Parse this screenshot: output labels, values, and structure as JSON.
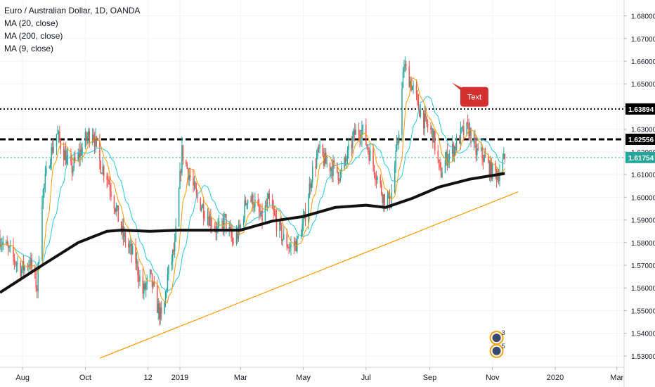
{
  "legend": {
    "title": "Euro / Australian Dollar, 1D, OANDA",
    "items": [
      "MA (20, close)",
      "MA (200, close)",
      "MA (9, close)"
    ]
  },
  "annotation": {
    "text": "Text",
    "date": "2019-10-13",
    "price": 1.6443
  },
  "badges": [
    {
      "label": "3",
      "date": "2019-11-05",
      "price": 1.538
    },
    {
      "label": "5",
      "date": "2019-11-05",
      "price": 1.5322
    }
  ],
  "colors": {
    "up": "#26a69a",
    "down": "#ef5350",
    "ma20": "#26c6da",
    "ma200": "#111111",
    "ma9": "#ff9800",
    "trendline": "#ff9800",
    "annotation": "#d32f2f",
    "current": "#26a69a"
  },
  "chart_data": {
    "type": "candlestick",
    "instrument": "EURAUD",
    "timeframe": "1D",
    "ylim": [
      1.525,
      1.687
    ],
    "xlim": [
      "2018-07-10",
      "2020-03-08"
    ],
    "y_ticks": [
      "1.68000",
      "1.67000",
      "1.66000",
      "1.65000",
      "1.64000",
      "1.63000",
      "1.62000",
      "1.61000",
      "1.60000",
      "1.59000",
      "1.58000",
      "1.57000",
      "1.56000",
      "1.55000",
      "1.54000",
      "1.53000"
    ],
    "x_ticks": [
      {
        "label": "Aug",
        "date": "2018-08-01"
      },
      {
        "label": "Oct",
        "date": "2018-10-01"
      },
      {
        "label": "12",
        "date": "2018-12-01"
      },
      {
        "label": "2019",
        "date": "2019-01-01"
      },
      {
        "label": "Mar",
        "date": "2019-03-01"
      },
      {
        "label": "May",
        "date": "2019-05-01"
      },
      {
        "label": "Jul",
        "date": "2019-07-01"
      },
      {
        "label": "Sep",
        "date": "2019-09-01"
      },
      {
        "label": "Nov",
        "date": "2019-11-01"
      },
      {
        "label": "2020",
        "date": "2020-01-01"
      },
      {
        "label": "Mar",
        "date": "2020-03-01"
      }
    ],
    "horizontal_lines": [
      {
        "price": 1.63894,
        "label": "1.63894",
        "style": "dotted",
        "color": "#000000"
      },
      {
        "price": 1.62556,
        "label": "1.62556",
        "style": "dashed",
        "color": "#000000"
      },
      {
        "price": 1.61754,
        "label": "1.61754",
        "style": "dotted",
        "color": "#26a69a"
      }
    ],
    "trendline": {
      "start": {
        "date": "2018-10-15",
        "price": 1.529
      },
      "end": {
        "date": "2019-11-26",
        "price": 1.6024
      }
    },
    "close_series": [
      [
        "2018-07-10",
        1.582
      ],
      [
        "2018-07-20",
        1.575
      ],
      [
        "2018-07-31",
        1.568
      ],
      [
        "2018-08-08",
        1.572
      ],
      [
        "2018-08-15",
        1.56
      ],
      [
        "2018-08-20",
        1.6
      ],
      [
        "2018-08-27",
        1.617
      ],
      [
        "2018-09-03",
        1.628
      ],
      [
        "2018-09-10",
        1.62
      ],
      [
        "2018-09-17",
        1.612
      ],
      [
        "2018-09-24",
        1.618
      ],
      [
        "2018-10-01",
        1.625
      ],
      [
        "2018-10-08",
        1.63
      ],
      [
        "2018-10-15",
        1.615
      ],
      [
        "2018-10-22",
        1.61
      ],
      [
        "2018-10-29",
        1.598
      ],
      [
        "2018-11-05",
        1.585
      ],
      [
        "2018-11-12",
        1.578
      ],
      [
        "2018-11-19",
        1.572
      ],
      [
        "2018-11-26",
        1.558
      ],
      [
        "2018-12-03",
        1.565
      ],
      [
        "2018-12-10",
        1.552
      ],
      [
        "2018-12-15",
        1.545
      ],
      [
        "2018-12-20",
        1.565
      ],
      [
        "2018-12-27",
        1.578
      ],
      [
        "2019-01-03",
        1.62
      ],
      [
        "2019-01-10",
        1.61
      ],
      [
        "2019-01-17",
        1.6
      ],
      [
        "2019-01-24",
        1.595
      ],
      [
        "2019-01-31",
        1.59
      ],
      [
        "2019-02-07",
        1.585
      ],
      [
        "2019-02-14",
        1.59
      ],
      [
        "2019-02-21",
        1.58
      ],
      [
        "2019-02-28",
        1.585
      ],
      [
        "2019-03-07",
        1.6
      ],
      [
        "2019-03-14",
        1.598
      ],
      [
        "2019-03-21",
        1.59
      ],
      [
        "2019-03-28",
        1.598
      ],
      [
        "2019-04-04",
        1.59
      ],
      [
        "2019-04-11",
        1.582
      ],
      [
        "2019-04-18",
        1.578
      ],
      [
        "2019-04-25",
        1.58
      ],
      [
        "2019-05-02",
        1.59
      ],
      [
        "2019-05-09",
        1.61
      ],
      [
        "2019-05-16",
        1.62
      ],
      [
        "2019-05-23",
        1.615
      ],
      [
        "2019-05-30",
        1.613
      ],
      [
        "2019-06-06",
        1.61
      ],
      [
        "2019-06-13",
        1.618
      ],
      [
        "2019-06-20",
        1.628
      ],
      [
        "2019-06-27",
        1.63
      ],
      [
        "2019-07-04",
        1.62
      ],
      [
        "2019-07-11",
        1.61
      ],
      [
        "2019-07-18",
        1.6
      ],
      [
        "2019-07-25",
        1.598
      ],
      [
        "2019-08-01",
        1.625
      ],
      [
        "2019-08-07",
        1.658
      ],
      [
        "2019-08-14",
        1.65
      ],
      [
        "2019-08-21",
        1.64
      ],
      [
        "2019-08-28",
        1.632
      ],
      [
        "2019-09-04",
        1.628
      ],
      [
        "2019-09-11",
        1.61
      ],
      [
        "2019-09-18",
        1.618
      ],
      [
        "2019-09-25",
        1.622
      ],
      [
        "2019-10-02",
        1.628
      ],
      [
        "2019-10-09",
        1.63
      ],
      [
        "2019-10-16",
        1.62
      ],
      [
        "2019-10-23",
        1.618
      ],
      [
        "2019-10-30",
        1.612
      ],
      [
        "2019-11-06",
        1.61
      ],
      [
        "2019-11-13",
        1.617
      ]
    ],
    "ma200_series": [
      [
        "2018-07-10",
        1.558
      ],
      [
        "2018-08-20",
        1.57
      ],
      [
        "2018-09-24",
        1.58
      ],
      [
        "2018-10-22",
        1.585
      ],
      [
        "2018-11-05",
        1.5855
      ],
      [
        "2018-12-03",
        1.585
      ],
      [
        "2019-01-01",
        1.5855
      ],
      [
        "2019-02-01",
        1.5855
      ],
      [
        "2019-03-01",
        1.5855
      ],
      [
        "2019-04-01",
        1.5895
      ],
      [
        "2019-05-01",
        1.5915
      ],
      [
        "2019-06-01",
        1.5955
      ],
      [
        "2019-07-01",
        1.5965
      ],
      [
        "2019-07-20",
        1.5955
      ],
      [
        "2019-08-15",
        1.5995
      ],
      [
        "2019-09-10",
        1.6045
      ],
      [
        "2019-10-10",
        1.608
      ],
      [
        "2019-11-13",
        1.6105
      ]
    ]
  }
}
